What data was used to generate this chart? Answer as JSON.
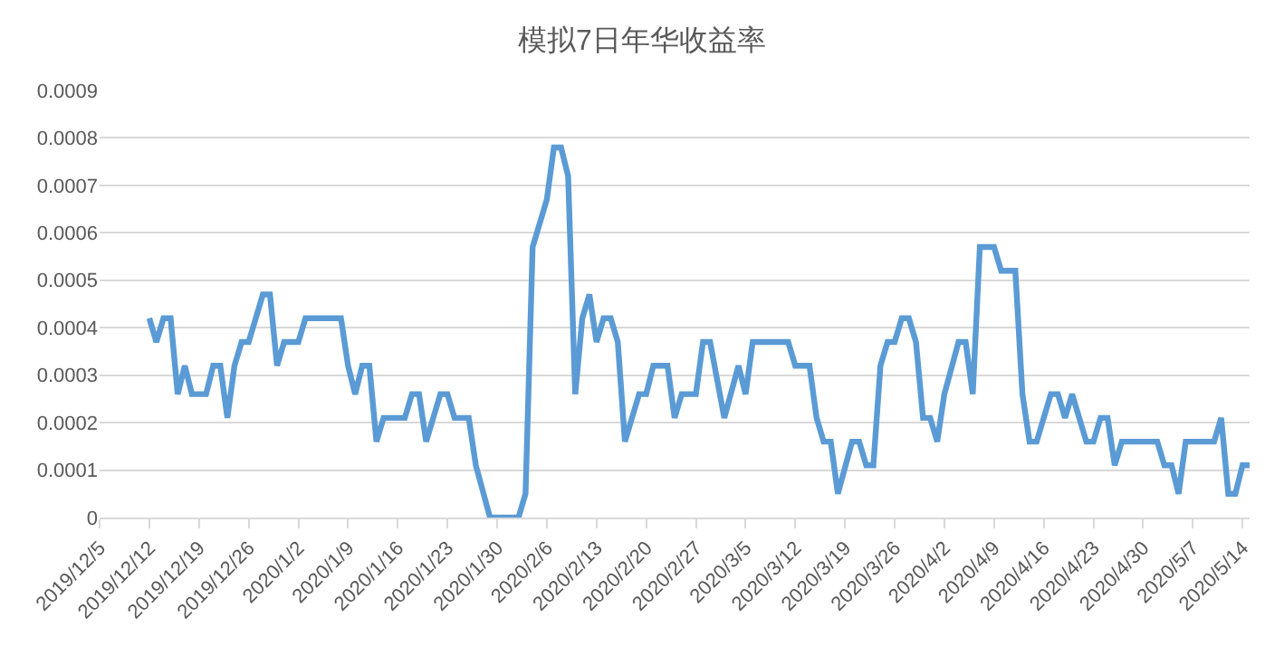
{
  "chart_data": {
    "type": "line",
    "title": "模拟7日年华收益率",
    "x": [
      "2019-12-12",
      "2019-12-13",
      "2019-12-14",
      "2019-12-15",
      "2019-12-16",
      "2019-12-17",
      "2019-12-18",
      "2019-12-20",
      "2019-12-21",
      "2019-12-22",
      "2019-12-23",
      "2019-12-24",
      "2019-12-25",
      "2019-12-26",
      "2019-12-28",
      "2019-12-29",
      "2019-12-30",
      "2019-12-31",
      "2020-01-02",
      "2020-01-03",
      "2020-01-08",
      "2020-01-09",
      "2020-01-10",
      "2020-01-11",
      "2020-01-12",
      "2020-01-13",
      "2020-01-14",
      "2020-01-17",
      "2020-01-18",
      "2020-01-19",
      "2020-01-20",
      "2020-01-22",
      "2020-01-23",
      "2020-01-24",
      "2020-01-26",
      "2020-01-27",
      "2020-01-29",
      "2020-02-02",
      "2020-02-03",
      "2020-02-04",
      "2020-02-06",
      "2020-02-07",
      "2020-02-08",
      "2020-02-09",
      "2020-02-10",
      "2020-02-11",
      "2020-02-12",
      "2020-02-13",
      "2020-02-14",
      "2020-02-15",
      "2020-02-16",
      "2020-02-17",
      "2020-02-19",
      "2020-02-20",
      "2020-02-21",
      "2020-02-23",
      "2020-02-24",
      "2020-02-25",
      "2020-02-27",
      "2020-02-28",
      "2020-02-29",
      "2020-03-02",
      "2020-03-04",
      "2020-03-05",
      "2020-03-06",
      "2020-03-11",
      "2020-03-12",
      "2020-03-14",
      "2020-03-15",
      "2020-03-16",
      "2020-03-17",
      "2020-03-18",
      "2020-03-20",
      "2020-03-21",
      "2020-03-22",
      "2020-03-23",
      "2020-03-24",
      "2020-03-25",
      "2020-03-26",
      "2020-03-27",
      "2020-03-28",
      "2020-03-29",
      "2020-03-30",
      "2020-03-31",
      "2020-04-01",
      "2020-04-02",
      "2020-04-04",
      "2020-04-05",
      "2020-04-06",
      "2020-04-07",
      "2020-04-09",
      "2020-04-10",
      "2020-04-12",
      "2020-04-13",
      "2020-04-14",
      "2020-04-15",
      "2020-04-16",
      "2020-04-17",
      "2020-04-18",
      "2020-04-19",
      "2020-04-20",
      "2020-04-21",
      "2020-04-22",
      "2020-04-23",
      "2020-04-24",
      "2020-04-25",
      "2020-04-26",
      "2020-04-27",
      "2020-05-02",
      "2020-05-03",
      "2020-05-04",
      "2020-05-05",
      "2020-05-06",
      "2020-05-10",
      "2020-05-11",
      "2020-05-12",
      "2020-05-13",
      "2020-05-14",
      "2020-05-15"
    ],
    "series": [
      {
        "color": "#5b9bd5",
        "values": [
          0.00042,
          0.00037,
          0.00042,
          0.00042,
          0.00026,
          0.00032,
          0.00026,
          0.00026,
          0.00032,
          0.00032,
          0.00021,
          0.00032,
          0.00037,
          0.00037,
          0.00047,
          0.00047,
          0.00032,
          0.00037,
          0.00037,
          0.00042,
          0.00042,
          0.00032,
          0.00026,
          0.00032,
          0.00032,
          0.00016,
          0.00021,
          0.00021,
          0.00026,
          0.00026,
          0.00016,
          0.00026,
          0.00026,
          0.00021,
          0.00021,
          0.00011,
          0,
          0,
          5e-05,
          0.00057,
          0.00067,
          0.00078,
          0.00078,
          0.00072,
          0.00026,
          0.00042,
          0.00047,
          0.00037,
          0.00042,
          0.00042,
          0.00037,
          0.00016,
          0.00026,
          0.00026,
          0.00032,
          0.00032,
          0.00021,
          0.00026,
          0.00026,
          0.00037,
          0.00037,
          0.00021,
          0.00032,
          0.00026,
          0.00037,
          0.00037,
          0.00032,
          0.00032,
          0.00021,
          0.00016,
          0.00016,
          5e-05,
          0.00016,
          0.00016,
          0.00011,
          0.00011,
          0.00032,
          0.00037,
          0.00037,
          0.00042,
          0.00042,
          0.00037,
          0.00021,
          0.00021,
          0.00016,
          0.00026,
          0.00037,
          0.00037,
          0.00026,
          0.00057,
          0.00057,
          0.00052,
          0.00052,
          0.00026,
          0.00016,
          0.00016,
          0.00021,
          0.00026,
          0.00026,
          0.00021,
          0.00026,
          0.00021,
          0.00016,
          0.00016,
          0.00021,
          0.00021,
          0.00011,
          0.00016,
          0.00016,
          0.00011,
          0.00011,
          5e-05,
          0.00016,
          0.00016,
          0.00021,
          5e-05,
          5e-05,
          0.00011,
          0.00011
        ]
      }
    ],
    "xlim": [
      "2019-12-05",
      "2020-05-15"
    ],
    "xticks": [
      {
        "value": "2019-12-05",
        "label": "2019/12/5"
      },
      {
        "value": "2019-12-12",
        "label": "2019/12/12"
      },
      {
        "value": "2019-12-19",
        "label": "2019/12/19"
      },
      {
        "value": "2019-12-26",
        "label": "2019/12/26"
      },
      {
        "value": "2020-01-02",
        "label": "2020/1/2"
      },
      {
        "value": "2020-01-09",
        "label": "2020/1/9"
      },
      {
        "value": "2020-01-16",
        "label": "2020/1/16"
      },
      {
        "value": "2020-01-23",
        "label": "2020/1/23"
      },
      {
        "value": "2020-01-30",
        "label": "2020/1/30"
      },
      {
        "value": "2020-02-06",
        "label": "2020/2/6"
      },
      {
        "value": "2020-02-13",
        "label": "2020/2/13"
      },
      {
        "value": "2020-02-20",
        "label": "2020/2/20"
      },
      {
        "value": "2020-02-27",
        "label": "2020/2/27"
      },
      {
        "value": "2020-03-05",
        "label": "2020/3/5"
      },
      {
        "value": "2020-03-12",
        "label": "2020/3/12"
      },
      {
        "value": "2020-03-19",
        "label": "2020/3/19"
      },
      {
        "value": "2020-03-26",
        "label": "2020/3/26"
      },
      {
        "value": "2020-04-02",
        "label": "2020/4/2"
      },
      {
        "value": "2020-04-09",
        "label": "2020/4/9"
      },
      {
        "value": "2020-04-16",
        "label": "2020/4/16"
      },
      {
        "value": "2020-04-23",
        "label": "2020/4/23"
      },
      {
        "value": "2020-04-30",
        "label": "2020/4/30"
      },
      {
        "value": "2020-05-07",
        "label": "2020/5/7"
      },
      {
        "value": "2020-05-14",
        "label": "2020/5/14"
      }
    ],
    "ylim": [
      0,
      0.0009
    ],
    "yticks": [
      0,
      0.0001,
      0.0002,
      0.0003,
      0.0004,
      0.0005,
      0.0006,
      0.0007,
      0.0008,
      0.0009
    ],
    "grid": "y",
    "legend": false,
    "marker": "none",
    "line_style": "solid"
  }
}
